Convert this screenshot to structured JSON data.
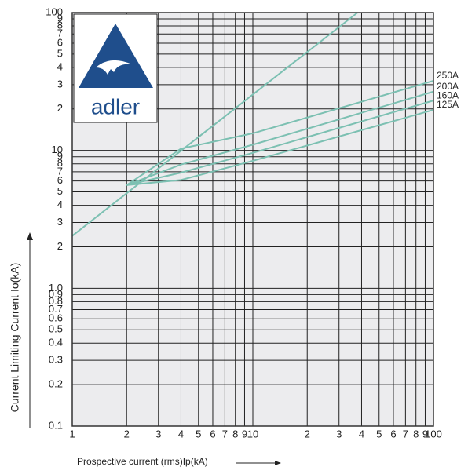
{
  "chart_data": {
    "type": "line",
    "logo_text": "adler",
    "xlabel": "Prospective current (rms)Ip(kA)",
    "ylabel": "Current Limiting Current Io(kA)",
    "xscale": "log",
    "yscale": "log",
    "grid": true,
    "xlim": [
      1,
      100
    ],
    "ylim": [
      0.1,
      100
    ],
    "xticks": [
      1,
      2,
      3,
      4,
      5,
      6,
      7,
      8,
      9,
      10,
      {
        "value": 20,
        "label": "2"
      },
      {
        "value": 30,
        "label": "3"
      },
      {
        "value": 40,
        "label": "4"
      },
      {
        "value": 50,
        "label": "5"
      },
      {
        "value": 60,
        "label": "6"
      },
      {
        "value": 70,
        "label": "7"
      },
      {
        "value": 80,
        "label": "8"
      },
      {
        "value": 90,
        "label": "9"
      },
      100
    ],
    "yticks": [
      0.1,
      0.2,
      0.3,
      0.4,
      0.5,
      0.6,
      0.7,
      0.8,
      0.9,
      {
        "value": 1,
        "label": "1.0"
      },
      2,
      3,
      4,
      5,
      6,
      7,
      8,
      9,
      10,
      {
        "value": 20,
        "label": "2"
      },
      {
        "value": 30,
        "label": "3"
      },
      {
        "value": 40,
        "label": "4"
      },
      {
        "value": 50,
        "label": "5"
      },
      {
        "value": 60,
        "label": "6"
      },
      {
        "value": 70,
        "label": "7"
      },
      {
        "value": 80,
        "label": "8"
      },
      {
        "value": 90,
        "label": "9"
      },
      100
    ],
    "series": [
      {
        "color": "#7cc0b2",
        "x": [
          1,
          38
        ],
        "values": [
          2.4,
          100
        ]
      },
      {
        "name": "250A",
        "color": "#7cc0b2",
        "x": [
          2,
          4,
          10,
          100
        ],
        "values": [
          5.6,
          10.3,
          13.3,
          32
        ]
      },
      {
        "name": "200A",
        "color": "#7cc0b2",
        "x": [
          2,
          4,
          10,
          100
        ],
        "values": [
          5.6,
          7.9,
          11,
          26.7
        ]
      },
      {
        "name": "160A",
        "color": "#7cc0b2",
        "x": [
          2,
          4,
          10,
          100
        ],
        "values": [
          5.6,
          6.9,
          9.6,
          23
        ]
      },
      {
        "name": "125A",
        "color": "#7cc0b2",
        "x": [
          2,
          4,
          10,
          100
        ],
        "values": [
          5.6,
          6.1,
          8.4,
          19.7
        ]
      }
    ]
  }
}
